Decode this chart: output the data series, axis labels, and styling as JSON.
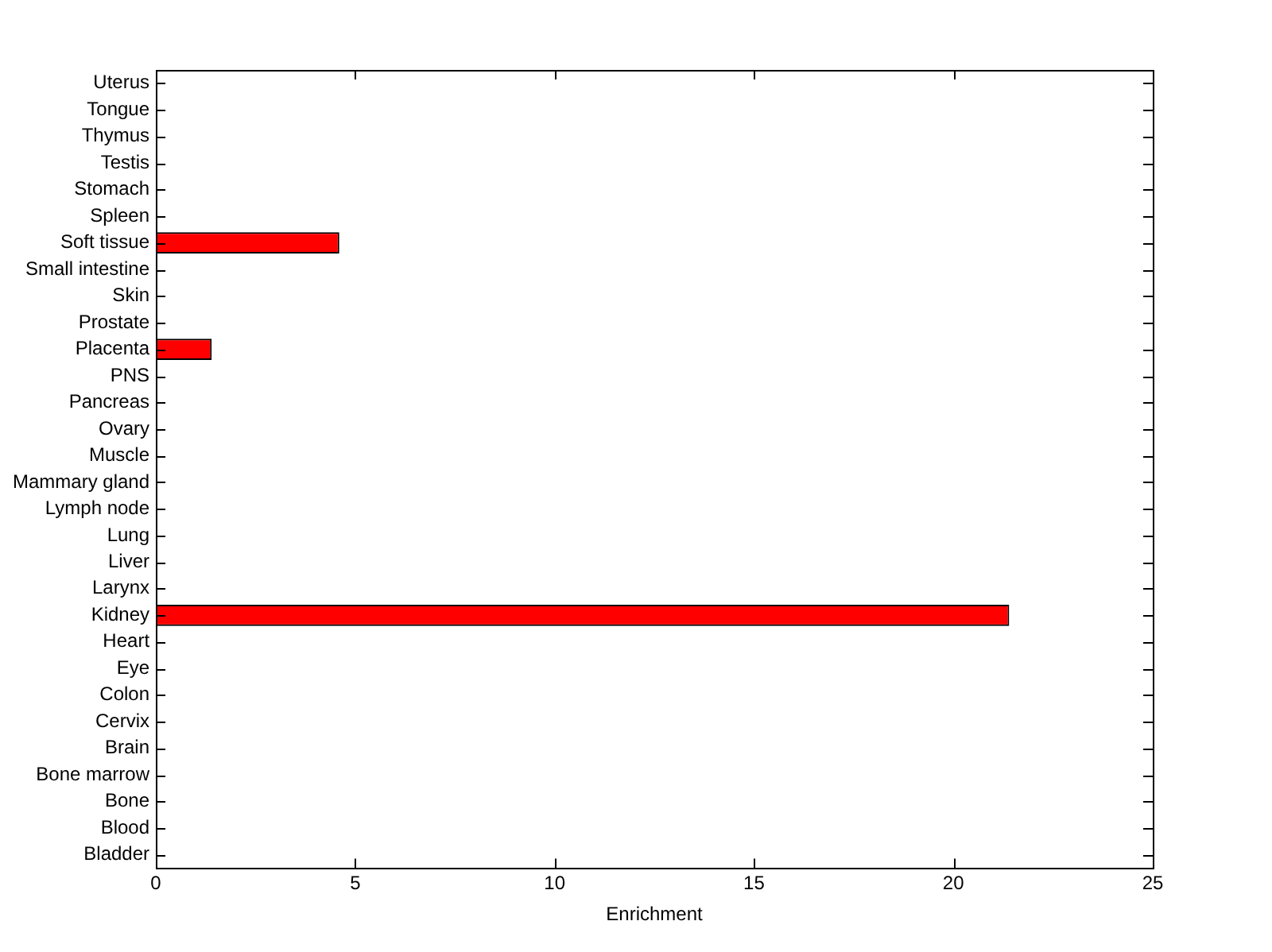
{
  "chart_data": {
    "type": "bar",
    "orientation": "horizontal",
    "xlabel": "Enrichment",
    "categories": [
      "Uterus",
      "Tongue",
      "Thymus",
      "Testis",
      "Stomach",
      "Spleen",
      "Soft tissue",
      "Small intestine",
      "Skin",
      "Prostate",
      "Placenta",
      "PNS",
      "Pancreas",
      "Ovary",
      "Muscle",
      "Mammary gland",
      "Lymph node",
      "Lung",
      "Liver",
      "Larynx",
      "Kidney",
      "Heart",
      "Eye",
      "Colon",
      "Cervix",
      "Brain",
      "Bone marrow",
      "Bone",
      "Blood",
      "Bladder"
    ],
    "values": [
      0,
      0,
      0,
      0,
      0,
      0,
      4.6,
      0,
      0,
      0,
      1.4,
      0,
      0,
      0,
      0,
      0,
      0,
      0,
      0,
      0,
      21.4,
      0,
      0,
      0,
      0,
      0,
      0,
      0,
      0,
      0
    ],
    "color": "#ff0000",
    "xlim": [
      0,
      25
    ],
    "xticks": [
      0,
      5,
      10,
      15,
      20,
      25
    ],
    "grid": false,
    "legend": false
  }
}
